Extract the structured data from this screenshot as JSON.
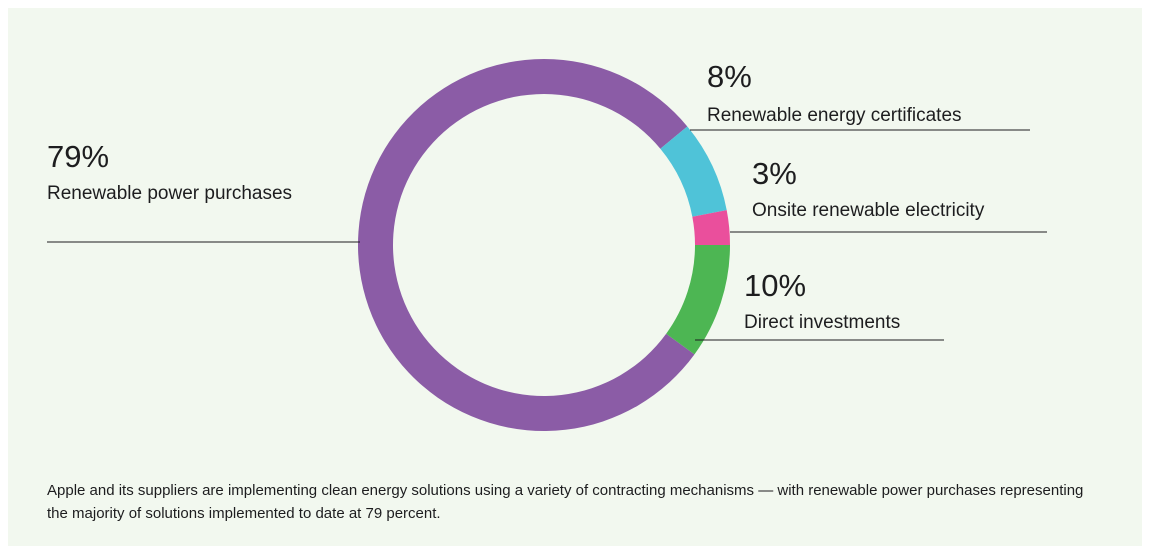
{
  "chart_data": {
    "type": "pie",
    "categories": [
      "Renewable power purchases",
      "Renewable energy certificates",
      "Onsite renewable electricity",
      "Direct investments"
    ],
    "values": [
      79,
      8,
      3,
      10
    ],
    "value_labels": [
      "79%",
      "8%",
      "3%",
      "10%"
    ],
    "colors": [
      "#8b5ca6",
      "#4fc3d8",
      "#ea4f9c",
      "#4db653"
    ],
    "donut": true,
    "caption": "Apple and its suppliers are implementing clean energy solutions using a variety of contracting mechanisms — with renewable power purchases representing the majority of solutions implemented to date at 79 percent."
  }
}
